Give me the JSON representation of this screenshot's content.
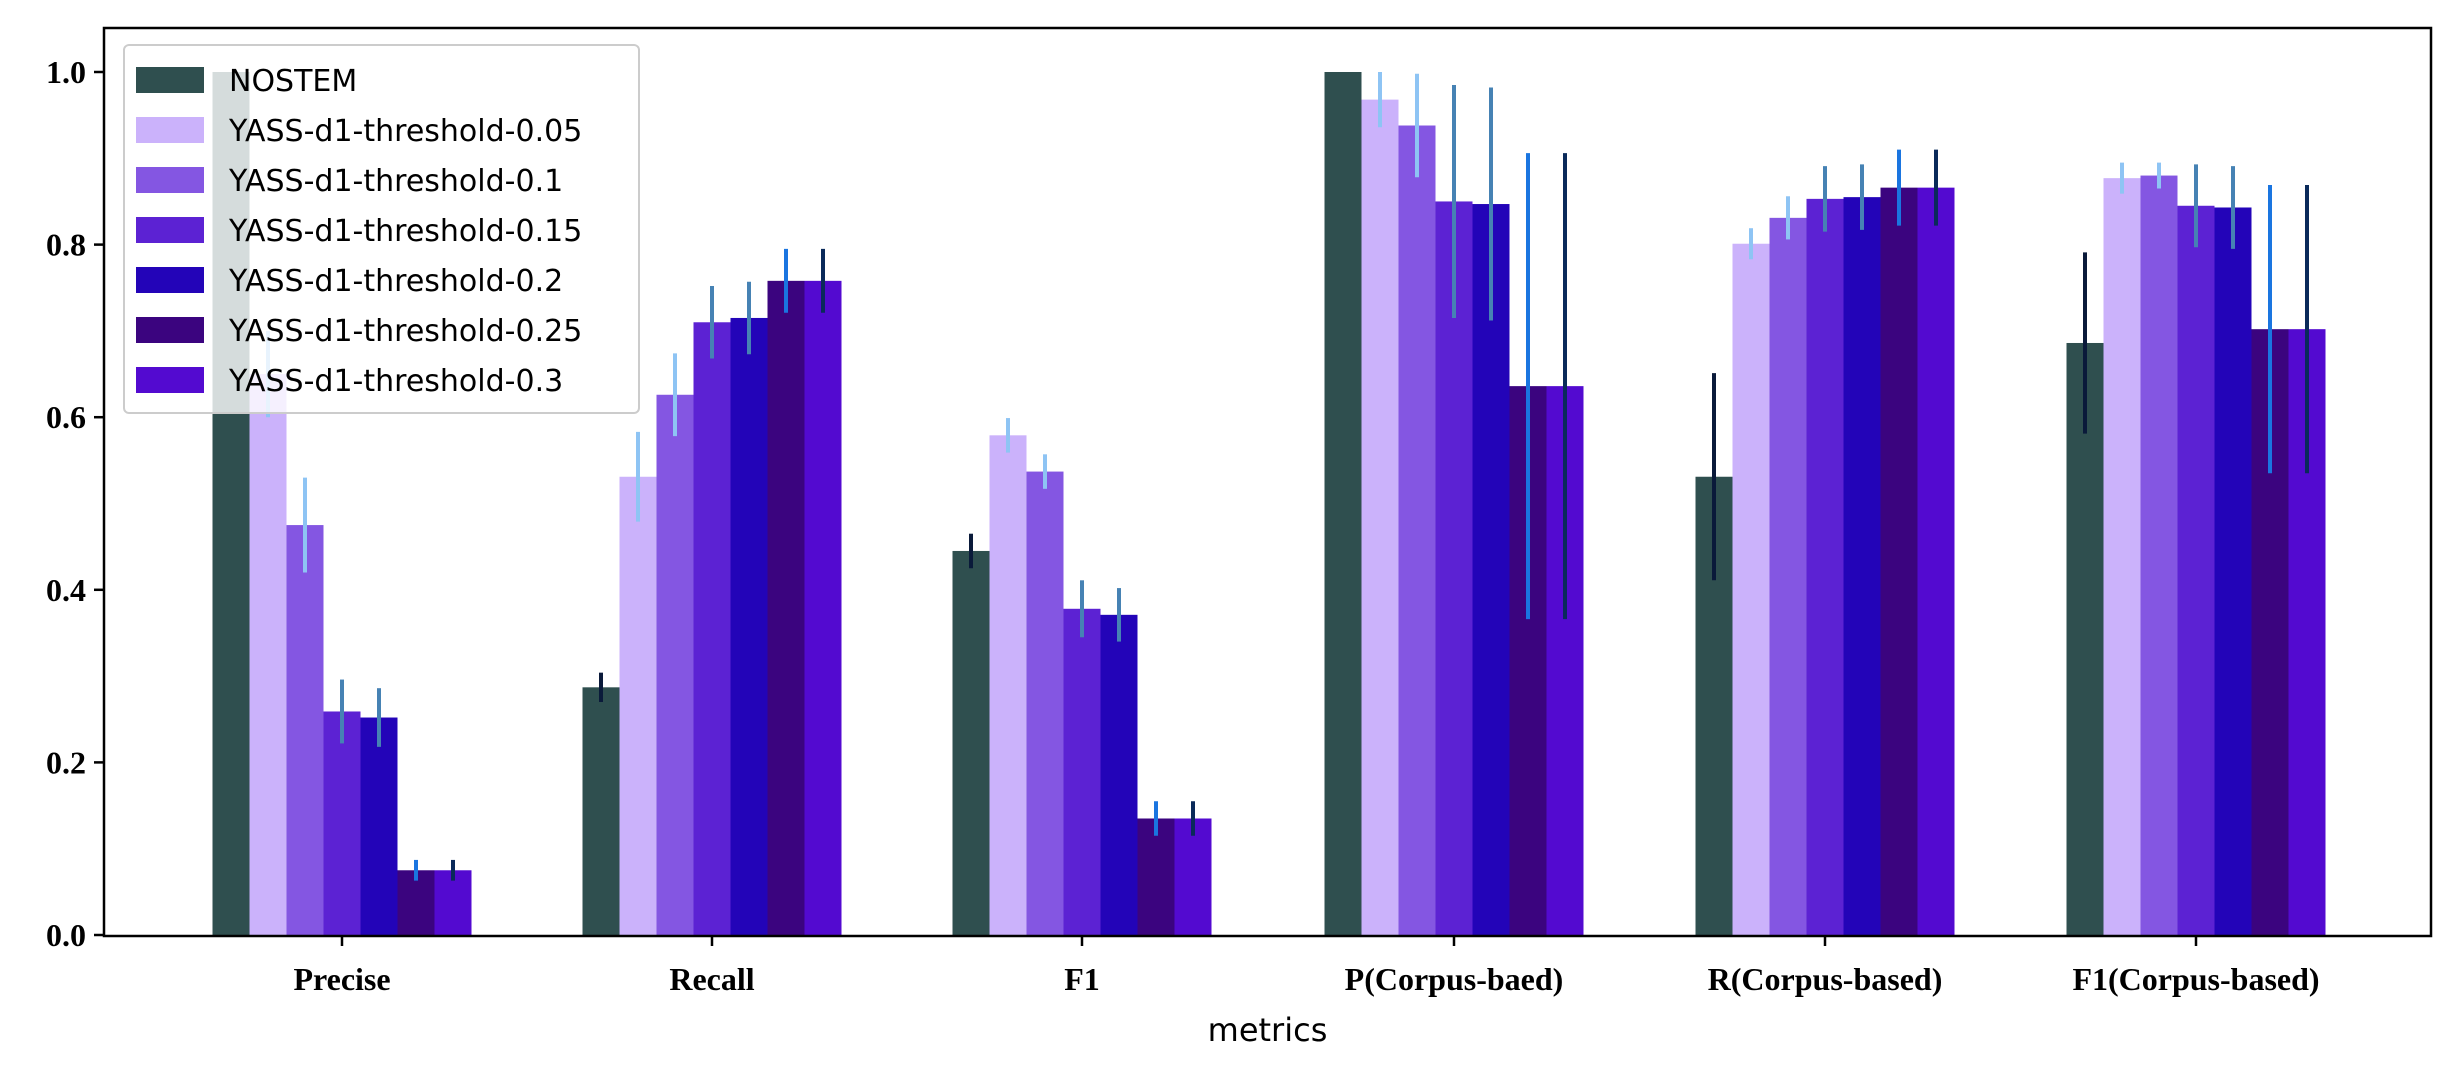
{
  "chart_data": {
    "type": "bar",
    "title": "",
    "xlabel": "metrics",
    "ylabel": "",
    "ylim": [
      0,
      1.05
    ],
    "yticks": [
      "0.0",
      "0.2",
      "0.4",
      "0.6",
      "0.8",
      "1.0"
    ],
    "grid": false,
    "legend_position": "top-left",
    "categories": [
      "Precise",
      "Recall",
      "F1",
      "P(Corpus-baed)",
      "R(Corpus-based)",
      "F1(Corpus-based)"
    ],
    "series": [
      {
        "name": "NOSTEM",
        "color": "#2f4f4f",
        "values": [
          1.0,
          0.287,
          0.445,
          1.0,
          0.531,
          0.686
        ],
        "err": [
          0.0,
          0.017,
          0.02,
          0.0,
          0.12,
          0.105
        ],
        "err_color": "#0a1a3a"
      },
      {
        "name": "YASS-d1-threshold-0.05",
        "color": "#cbb2fb",
        "values": [
          0.65,
          0.531,
          0.579,
          0.968,
          0.801,
          0.877
        ],
        "err": [
          0.05,
          0.052,
          0.02,
          0.032,
          0.018,
          0.018
        ],
        "err_color": "#8ec4f4"
      },
      {
        "name": "YASS-d1-threshold-0.1",
        "color": "#8456e2",
        "values": [
          0.475,
          0.626,
          0.537,
          0.938,
          0.831,
          0.88
        ],
        "err": [
          0.055,
          0.048,
          0.02,
          0.06,
          0.025,
          0.015
        ],
        "err_color": "#8ec4f4"
      },
      {
        "name": "YASS-d1-threshold-0.15",
        "color": "#5c22d3",
        "values": [
          0.259,
          0.71,
          0.378,
          0.85,
          0.853,
          0.845
        ],
        "err": [
          0.037,
          0.042,
          0.033,
          0.135,
          0.038,
          0.048
        ],
        "err_color": "#4682b4"
      },
      {
        "name": "YASS-d1-threshold-0.2",
        "color": "#2304b8",
        "values": [
          0.252,
          0.715,
          0.371,
          0.847,
          0.855,
          0.843
        ],
        "err": [
          0.034,
          0.042,
          0.031,
          0.135,
          0.038,
          0.048
        ],
        "err_color": "#4682b4"
      },
      {
        "name": "YASS-d1-threshold-0.25",
        "color": "#3b047f",
        "values": [
          0.075,
          0.758,
          0.135,
          0.636,
          0.866,
          0.702
        ],
        "err": [
          0.012,
          0.037,
          0.02,
          0.27,
          0.044,
          0.167
        ],
        "err_color": "#1a75e0"
      },
      {
        "name": "YASS-d1-threshold-0.3",
        "color": "#530ad0",
        "values": [
          0.075,
          0.758,
          0.135,
          0.636,
          0.866,
          0.702
        ],
        "err": [
          0.012,
          0.037,
          0.02,
          0.27,
          0.044,
          0.167
        ],
        "err_color": "#0a2a5a"
      }
    ]
  }
}
